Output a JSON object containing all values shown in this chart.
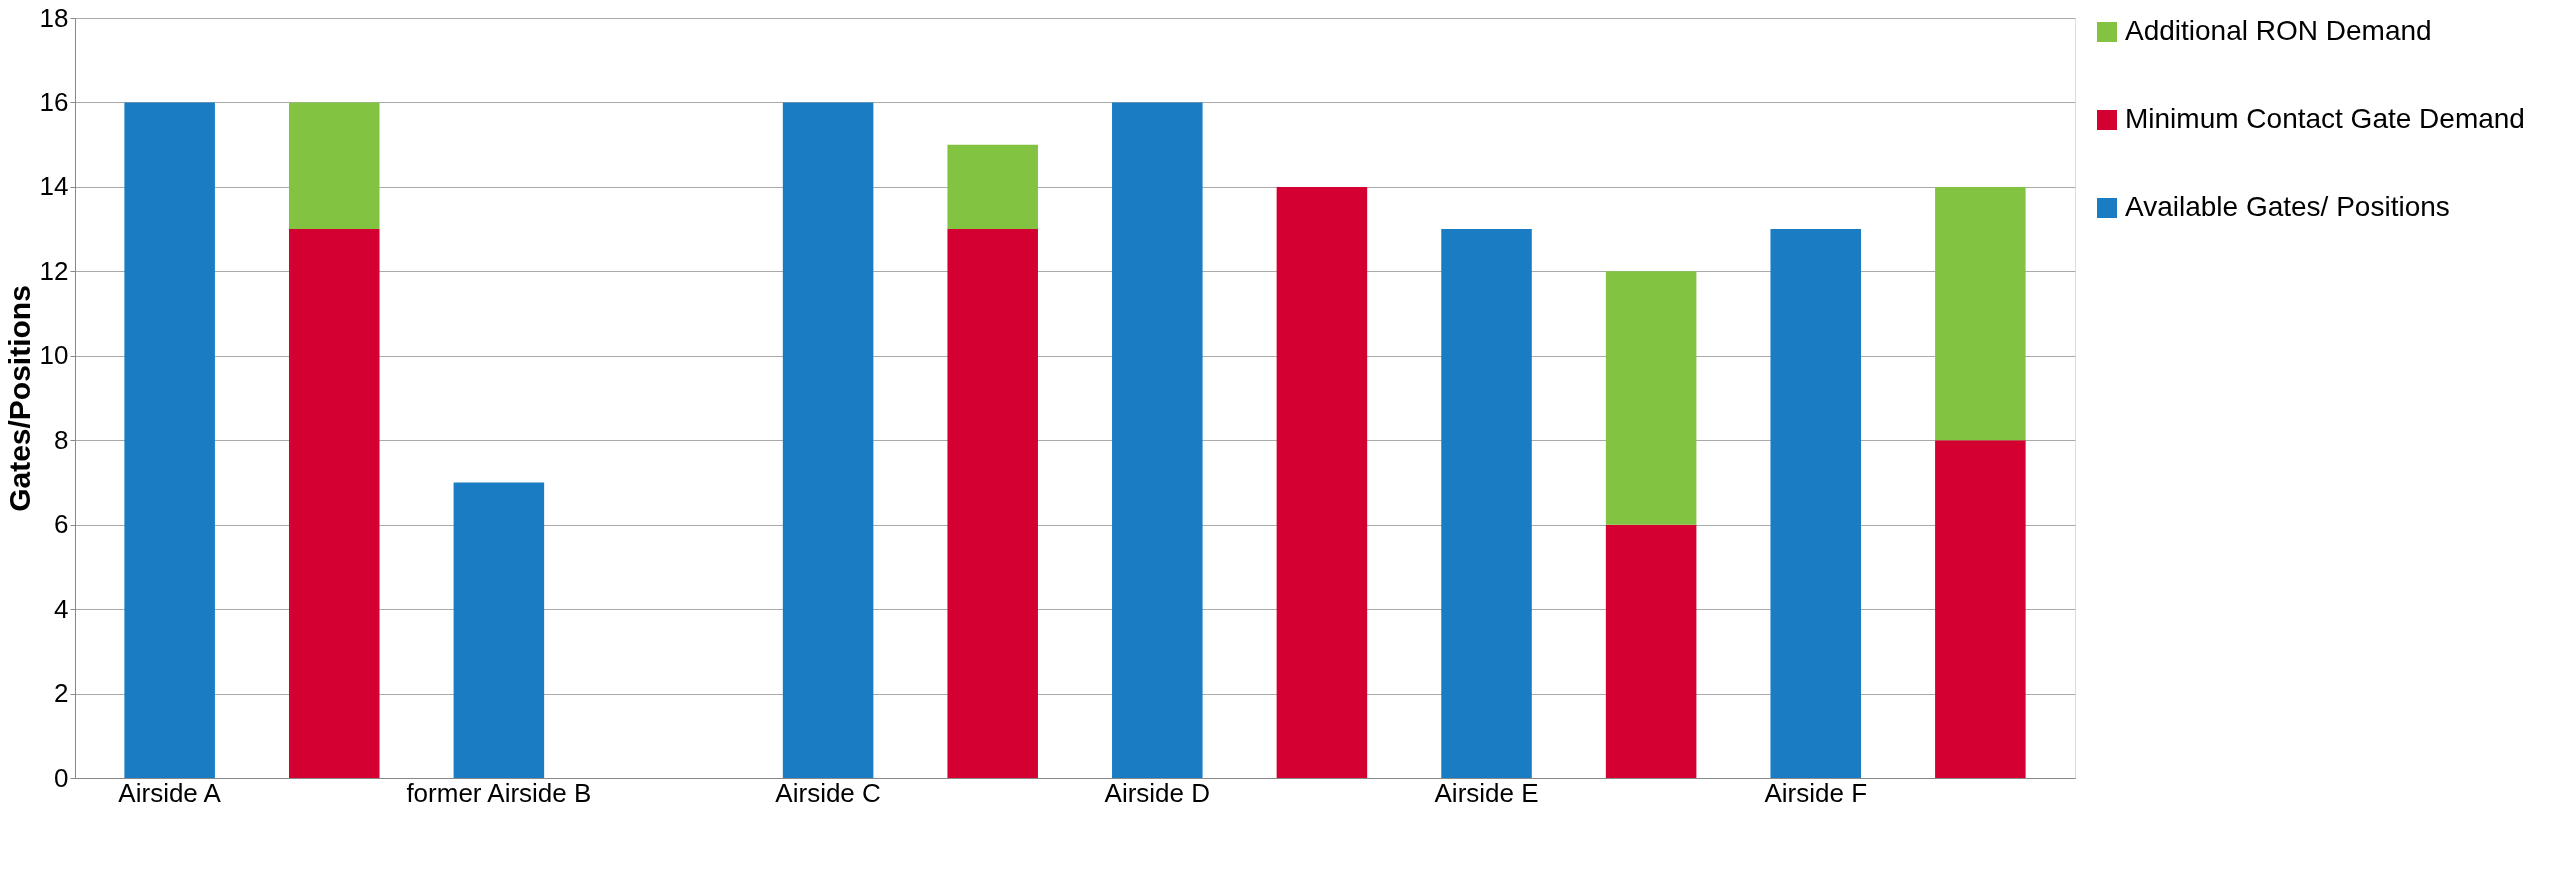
{
  "chart_data": {
    "type": "bar",
    "ylabel": "Gates/Positions",
    "categories": [
      "Airside A",
      null,
      "former Airside B",
      null,
      "Airside C",
      null,
      "Airside D",
      null,
      "Airside E",
      null,
      "Airside F",
      null
    ],
    "stacked": true,
    "ylim": [
      0,
      18
    ],
    "yticks": [
      0,
      2,
      4,
      6,
      8,
      10,
      12,
      14,
      16,
      18
    ],
    "grid": "y",
    "legend": "right",
    "series": [
      {
        "name": "Available Gates/ Positions",
        "color": "#1a7dc4",
        "values": [
          16,
          null,
          7,
          null,
          16,
          null,
          16,
          null,
          13,
          null,
          13,
          null
        ]
      },
      {
        "name": "Minimum Contact Gate Demand",
        "color": "#d50032",
        "values": [
          null,
          13,
          null,
          null,
          null,
          13,
          null,
          14,
          null,
          6,
          null,
          8
        ]
      },
      {
        "name": "Additional RON Demand",
        "color": "#82c341",
        "values": [
          null,
          3,
          null,
          null,
          null,
          2,
          null,
          null,
          null,
          6,
          null,
          6
        ]
      }
    ]
  }
}
